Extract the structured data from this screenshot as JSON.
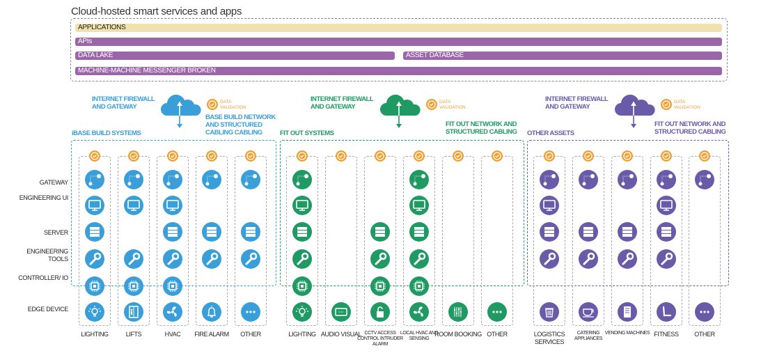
{
  "title": "Cloud-hosted smart services and apps",
  "colors": {
    "blue": "#3a9fd8",
    "green": "#1f9a63",
    "purple": "#6a5ba8",
    "orange": "#f0a030",
    "bar_purple": "#9b66a8",
    "bar_yellow": "#efe2b0"
  },
  "cloud_layers": {
    "applications": "APPLICATIONS",
    "apis": "APIs",
    "data_lake": "DATA LAKE",
    "asset_database": "ASSET DATABASE",
    "messenger": "MACHINE-MACHINE MESSENGER BROKEN"
  },
  "rows": [
    {
      "key": "gateway",
      "label": "GATEWAY",
      "icon": "gateway-icon"
    },
    {
      "key": "ui",
      "label": "ENGINEERING UI",
      "icon": "monitor-icon"
    },
    {
      "key": "server",
      "label": "SERVER",
      "icon": "server-icon"
    },
    {
      "key": "tools",
      "label": "ENGINEERING TOOLS",
      "icon": "wrench-icon"
    },
    {
      "key": "controller",
      "label": "CONTROLLER/ IO",
      "icon": "chip-icon"
    },
    {
      "key": "edge",
      "label": "EDGE DEVICE",
      "icon": ""
    }
  ],
  "sections": [
    {
      "color": "#3a9fd8",
      "firewall": "INTERNET FIREWALL AND GATEWAY",
      "validation": "DATA VALIDATION",
      "network": "BASE BUILD NETWORK AND STRUCTURED CABLING CABLING",
      "systems": "iBASE BUILD SYSTEMS",
      "columns": [
        {
          "label": "LIGHTING",
          "edge_icon": "lightbulb-icon",
          "layers": [
            "gateway",
            "ui",
            "server",
            "tools",
            "controller",
            "edge"
          ]
        },
        {
          "label": "LIFTS",
          "edge_icon": "elevator-icon",
          "layers": [
            "gateway",
            "ui",
            "tools",
            "controller",
            "edge"
          ]
        },
        {
          "label": "HVAC",
          "edge_icon": "fan-icon",
          "layers": [
            "gateway",
            "ui",
            "server",
            "tools",
            "controller",
            "edge"
          ]
        },
        {
          "label": "FIRE ALARM",
          "edge_icon": "bell-icon",
          "layers": [
            "gateway",
            "server",
            "tools",
            "edge"
          ]
        },
        {
          "label": "OTHER",
          "edge_icon": "more-icon",
          "layers": [
            "gateway",
            "server",
            "tools",
            "edge"
          ]
        }
      ]
    },
    {
      "color": "#1f9a63",
      "firewall": "INTERNET FIREWALL AND GATEWAY",
      "validation": "DATA VALIDATION",
      "network": "FIT OUT NETWORK AND STRUCTURED CABLING",
      "systems": "FIT OUT SYSTEMS",
      "columns": [
        {
          "label": "LIGHTING",
          "edge_icon": "lightbulb-icon",
          "layers": [
            "gateway",
            "ui",
            "server",
            "tools",
            "controller",
            "edge"
          ]
        },
        {
          "label": "AUDIO VISUAL",
          "edge_icon": "display-icon",
          "layers": [
            "edge"
          ]
        },
        {
          "label": "CCTV ACCESS CONTROL INTRUDER ALARM",
          "small": true,
          "edge_icon": "padlock-icon",
          "layers": [
            "server",
            "tools",
            "controller",
            "edge"
          ]
        },
        {
          "label": "LOCAL HVAC AND SENSING",
          "small": true,
          "edge_icon": "fan-icon",
          "layers": [
            "gateway",
            "ui",
            "server",
            "tools",
            "controller",
            "edge"
          ]
        },
        {
          "label": "ROOM BOOKING",
          "edge_icon": "sliders-icon",
          "layers": [
            "edge"
          ]
        },
        {
          "label": "OTHER",
          "edge_icon": "more-icon",
          "layers": [
            "edge"
          ]
        }
      ]
    },
    {
      "color": "#6a5ba8",
      "firewall": "INTERNET FIREWALL AND GATEWAY",
      "validation": "DATA VALIDATION",
      "network": "FIT OUT NETWORK AND STRUCTURED CABLING",
      "systems": "OTHER ASSETS",
      "columns": [
        {
          "label": "LOGISTICS SERVICES",
          "edge_icon": "bin-icon",
          "layers": [
            "gateway",
            "ui",
            "server",
            "tools",
            "edge"
          ]
        },
        {
          "label": "CATERING APPLIANCES",
          "small": true,
          "edge_icon": "cup-icon",
          "layers": [
            "gateway",
            "server",
            "tools",
            "edge"
          ]
        },
        {
          "label": "VENDING MACHINES",
          "small": true,
          "edge_icon": "vending-icon",
          "layers": [
            "gateway",
            "server",
            "tools",
            "edge"
          ]
        },
        {
          "label": "FITNESS",
          "edge_icon": "treadmill-icon",
          "layers": [
            "gateway",
            "ui",
            "server",
            "tools",
            "edge"
          ]
        },
        {
          "label": "OTHER",
          "edge_icon": "more-icon",
          "layers": [
            "gateway",
            "edge"
          ]
        }
      ]
    }
  ]
}
